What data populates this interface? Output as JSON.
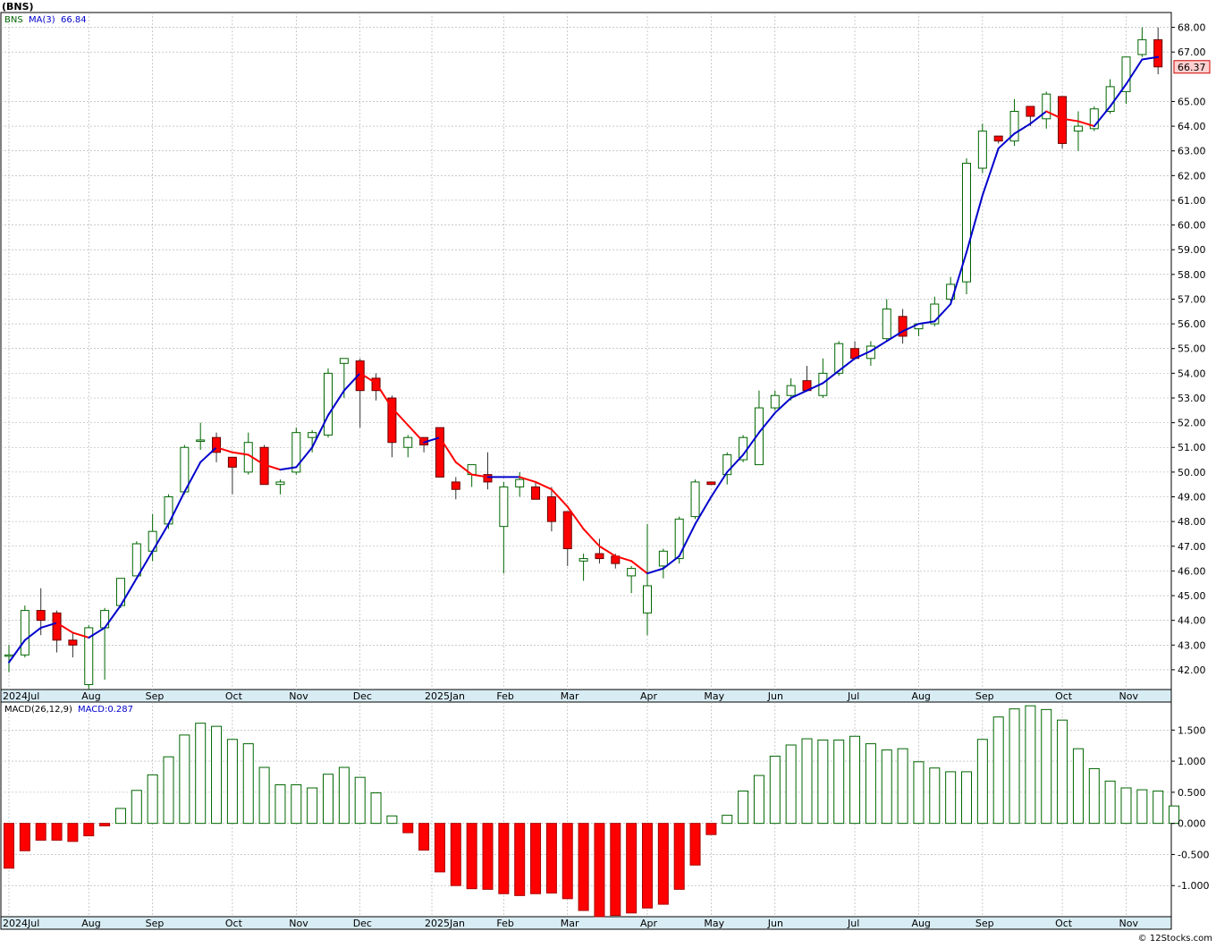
{
  "chart_data": [
    {
      "type": "candlestick",
      "title": "(BNS)",
      "symbol": "BNS",
      "indicator_label": "MA(3)",
      "indicator_value": "66.84",
      "last_price_label": "66.37",
      "ylim": [
        41.2,
        68.6
      ],
      "y_ticks": [
        {
          "value": 42,
          "label": "42.00"
        },
        {
          "value": 43,
          "label": "43.00"
        },
        {
          "value": 44,
          "label": "44.00"
        },
        {
          "value": 45,
          "label": "45.00"
        },
        {
          "value": 46,
          "label": "46.00"
        },
        {
          "value": 47,
          "label": "47.00"
        },
        {
          "value": 48,
          "label": "48.00"
        },
        {
          "value": 49,
          "label": "49.00"
        },
        {
          "value": 50,
          "label": "50.00"
        },
        {
          "value": 51,
          "label": "51.00"
        },
        {
          "value": 52,
          "label": "52.00"
        },
        {
          "value": 53,
          "label": "53.00"
        },
        {
          "value": 54,
          "label": "54.00"
        },
        {
          "value": 55,
          "label": "55.00"
        },
        {
          "value": 56,
          "label": "56.00"
        },
        {
          "value": 57,
          "label": "57.00"
        },
        {
          "value": 58,
          "label": "58.00"
        },
        {
          "value": 59,
          "label": "59.00"
        },
        {
          "value": 60,
          "label": "60.00"
        },
        {
          "value": 61,
          "label": "61.00"
        },
        {
          "value": 62,
          "label": "62.00"
        },
        {
          "value": 63,
          "label": "63.00"
        },
        {
          "value": 64,
          "label": "64.00"
        },
        {
          "value": 65,
          "label": "65.00"
        },
        {
          "value": 67,
          "label": "67.00"
        },
        {
          "value": 68,
          "label": "68.00"
        }
      ],
      "x_ticks": [
        {
          "week": 0,
          "label": "2024Jul"
        },
        {
          "week": 5,
          "label": "Aug"
        },
        {
          "week": 9,
          "label": "Sep"
        },
        {
          "week": 14,
          "label": "Oct"
        },
        {
          "week": 18,
          "label": "Nov"
        },
        {
          "week": 22,
          "label": "Dec"
        },
        {
          "week": 26.5,
          "label": "2025Jan"
        },
        {
          "week": 31,
          "label": "Feb"
        },
        {
          "week": 35,
          "label": "Mar"
        },
        {
          "week": 40,
          "label": "Apr"
        },
        {
          "week": 44,
          "label": "May"
        },
        {
          "week": 48,
          "label": "Jun"
        },
        {
          "week": 53,
          "label": "Jul"
        },
        {
          "week": 57,
          "label": "Aug"
        },
        {
          "week": 61,
          "label": "Sep"
        },
        {
          "week": 66,
          "label": "Oct"
        },
        {
          "week": 70,
          "label": "Nov"
        }
      ],
      "candles": [
        {
          "o": 42.6,
          "h": 43.0,
          "l": 41.9,
          "c": 42.6
        },
        {
          "o": 42.6,
          "h": 44.6,
          "l": 42.5,
          "c": 44.4
        },
        {
          "o": 44.4,
          "h": 45.3,
          "l": 43.4,
          "c": 44.0
        },
        {
          "o": 44.3,
          "h": 44.4,
          "l": 42.7,
          "c": 43.2
        },
        {
          "o": 43.2,
          "h": 43.5,
          "l": 42.5,
          "c": 43.0
        },
        {
          "o": 41.4,
          "h": 43.8,
          "l": 41.2,
          "c": 43.7
        },
        {
          "o": 43.7,
          "h": 44.5,
          "l": 41.6,
          "c": 44.4
        },
        {
          "o": 44.6,
          "h": 45.7,
          "l": 44.5,
          "c": 45.7
        },
        {
          "o": 45.8,
          "h": 47.2,
          "l": 45.8,
          "c": 47.1
        },
        {
          "o": 46.8,
          "h": 48.3,
          "l": 46.4,
          "c": 47.6
        },
        {
          "o": 47.9,
          "h": 49.1,
          "l": 47.7,
          "c": 49.0
        },
        {
          "o": 49.2,
          "h": 51.1,
          "l": 49.1,
          "c": 51.0
        },
        {
          "o": 51.3,
          "h": 52.0,
          "l": 50.9,
          "c": 51.3
        },
        {
          "o": 51.4,
          "h": 51.6,
          "l": 50.4,
          "c": 50.8
        },
        {
          "o": 50.6,
          "h": 50.6,
          "l": 49.1,
          "c": 50.2
        },
        {
          "o": 50.0,
          "h": 51.6,
          "l": 49.9,
          "c": 51.2
        },
        {
          "o": 51.0,
          "h": 51.1,
          "l": 49.5,
          "c": 49.5
        },
        {
          "o": 49.5,
          "h": 49.7,
          "l": 49.1,
          "c": 49.6
        },
        {
          "o": 50.0,
          "h": 51.8,
          "l": 49.9,
          "c": 51.6
        },
        {
          "o": 51.4,
          "h": 51.7,
          "l": 50.8,
          "c": 51.6
        },
        {
          "o": 51.5,
          "h": 54.2,
          "l": 51.4,
          "c": 54.0
        },
        {
          "o": 54.4,
          "h": 54.6,
          "l": 53.0,
          "c": 54.6
        },
        {
          "o": 54.5,
          "h": 54.6,
          "l": 51.8,
          "c": 53.3
        },
        {
          "o": 53.8,
          "h": 54.0,
          "l": 52.9,
          "c": 53.3
        },
        {
          "o": 53.0,
          "h": 53.1,
          "l": 50.6,
          "c": 51.2
        },
        {
          "o": 51.0,
          "h": 51.5,
          "l": 50.6,
          "c": 51.4
        },
        {
          "o": 51.4,
          "h": 51.4,
          "l": 50.8,
          "c": 51.1
        },
        {
          "o": 51.8,
          "h": 51.8,
          "l": 49.8,
          "c": 49.8
        },
        {
          "o": 49.6,
          "h": 49.8,
          "l": 48.9,
          "c": 49.3
        },
        {
          "o": 49.9,
          "h": 50.2,
          "l": 49.4,
          "c": 50.3
        },
        {
          "o": 49.9,
          "h": 50.8,
          "l": 49.3,
          "c": 49.6
        },
        {
          "o": 47.8,
          "h": 49.6,
          "l": 45.9,
          "c": 49.4
        },
        {
          "o": 49.4,
          "h": 50.0,
          "l": 49.0,
          "c": 49.7
        },
        {
          "o": 49.4,
          "h": 49.6,
          "l": 48.9,
          "c": 48.9
        },
        {
          "o": 49.0,
          "h": 49.4,
          "l": 47.6,
          "c": 48.0
        },
        {
          "o": 48.4,
          "h": 48.4,
          "l": 46.2,
          "c": 46.9
        },
        {
          "o": 46.4,
          "h": 46.7,
          "l": 45.6,
          "c": 46.5
        },
        {
          "o": 46.7,
          "h": 47.3,
          "l": 46.3,
          "c": 46.5
        },
        {
          "o": 46.6,
          "h": 46.7,
          "l": 46.1,
          "c": 46.3
        },
        {
          "o": 45.8,
          "h": 46.2,
          "l": 45.1,
          "c": 46.1
        },
        {
          "o": 44.3,
          "h": 47.9,
          "l": 43.4,
          "c": 45.4
        },
        {
          "o": 46.2,
          "h": 46.9,
          "l": 45.7,
          "c": 46.8
        },
        {
          "o": 46.5,
          "h": 48.2,
          "l": 46.3,
          "c": 48.1
        },
        {
          "o": 48.2,
          "h": 49.7,
          "l": 48.1,
          "c": 49.6
        },
        {
          "o": 49.6,
          "h": 49.6,
          "l": 49.5,
          "c": 49.5
        },
        {
          "o": 49.9,
          "h": 50.8,
          "l": 49.5,
          "c": 50.7
        },
        {
          "o": 50.5,
          "h": 51.5,
          "l": 50.4,
          "c": 51.4
        },
        {
          "o": 50.3,
          "h": 53.3,
          "l": 50.3,
          "c": 52.6
        },
        {
          "o": 52.6,
          "h": 53.3,
          "l": 52.5,
          "c": 53.1
        },
        {
          "o": 53.1,
          "h": 53.8,
          "l": 52.9,
          "c": 53.5
        },
        {
          "o": 53.7,
          "h": 54.3,
          "l": 53.4,
          "c": 53.3
        },
        {
          "o": 53.1,
          "h": 54.6,
          "l": 53.0,
          "c": 54.0
        },
        {
          "o": 54.0,
          "h": 55.3,
          "l": 53.9,
          "c": 55.2
        },
        {
          "o": 55.0,
          "h": 55.3,
          "l": 54.6,
          "c": 54.6
        },
        {
          "o": 54.6,
          "h": 55.3,
          "l": 54.3,
          "c": 55.1
        },
        {
          "o": 55.4,
          "h": 57.0,
          "l": 55.3,
          "c": 56.6
        },
        {
          "o": 56.3,
          "h": 56.6,
          "l": 55.2,
          "c": 55.5
        },
        {
          "o": 55.8,
          "h": 56.0,
          "l": 55.5,
          "c": 56.0
        },
        {
          "o": 56.0,
          "h": 57.1,
          "l": 55.9,
          "c": 56.8
        },
        {
          "o": 57.0,
          "h": 57.9,
          "l": 56.9,
          "c": 57.6
        },
        {
          "o": 57.7,
          "h": 62.7,
          "l": 57.2,
          "c": 62.5
        },
        {
          "o": 62.3,
          "h": 64.1,
          "l": 62.1,
          "c": 63.8
        },
        {
          "o": 63.6,
          "h": 63.6,
          "l": 63.3,
          "c": 63.4
        },
        {
          "o": 63.4,
          "h": 65.1,
          "l": 63.2,
          "c": 64.6
        },
        {
          "o": 64.8,
          "h": 64.8,
          "l": 64.0,
          "c": 64.4
        },
        {
          "o": 64.3,
          "h": 65.4,
          "l": 63.9,
          "c": 65.3
        },
        {
          "o": 65.2,
          "h": 65.2,
          "l": 63.1,
          "c": 63.3
        },
        {
          "o": 63.8,
          "h": 64.6,
          "l": 63.0,
          "c": 64.0
        },
        {
          "o": 63.9,
          "h": 64.8,
          "l": 63.8,
          "c": 64.7
        },
        {
          "o": 64.6,
          "h": 65.9,
          "l": 64.5,
          "c": 65.6
        },
        {
          "o": 65.4,
          "h": 66.8,
          "l": 64.9,
          "c": 66.8
        },
        {
          "o": 66.9,
          "h": 68.0,
          "l": 66.8,
          "c": 67.5
        },
        {
          "o": 67.5,
          "h": 68.0,
          "l": 66.1,
          "c": 66.4
        }
      ],
      "ma": [
        42.3,
        43.2,
        43.7,
        43.9,
        43.5,
        43.3,
        43.7,
        44.6,
        45.7,
        46.8,
        47.9,
        49.2,
        50.4,
        51.0,
        50.8,
        50.7,
        50.3,
        50.1,
        50.2,
        51.0,
        52.3,
        53.3,
        54.0,
        53.6,
        52.6,
        51.9,
        51.2,
        51.4,
        50.4,
        49.9,
        49.8,
        49.8,
        49.8,
        49.6,
        49.3,
        48.6,
        47.7,
        47.0,
        46.6,
        46.4,
        45.9,
        46.1,
        46.6,
        47.9,
        49.0,
        50.0,
        50.7,
        51.6,
        52.4,
        53.0,
        53.3,
        53.6,
        54.1,
        54.6,
        54.9,
        55.3,
        55.7,
        56.0,
        56.1,
        56.8,
        58.9,
        61.2,
        63.1,
        63.7,
        64.1,
        64.6,
        64.3,
        64.2,
        64.0,
        64.8,
        65.7,
        66.7,
        66.8
      ],
      "ma_color_changes": {
        "up": "#0000cc",
        "down": "#ff0000"
      },
      "colors": {
        "up_fill": "#ffffff",
        "up_stroke": "#006600",
        "down_fill": "#ff0000",
        "down_stroke": "#660000",
        "grid": "#aaaaaa"
      }
    },
    {
      "type": "bar",
      "title": "MACD(26,12,9)",
      "indicator_label": "MACD:0.287",
      "ylim": [
        -1.5,
        1.95
      ],
      "y_ticks": [
        {
          "value": 1.5,
          "label": "1.500"
        },
        {
          "value": 1.0,
          "label": "1.000"
        },
        {
          "value": 0.5,
          "label": "0.500"
        },
        {
          "value": 0.0,
          "label": "0.000"
        },
        {
          "value": -0.5,
          "label": "-0.500"
        },
        {
          "value": -1.0,
          "label": "-1.000"
        }
      ],
      "values": [
        -0.72,
        -0.44,
        -0.27,
        -0.27,
        -0.29,
        -0.2,
        -0.04,
        0.24,
        0.53,
        0.78,
        1.07,
        1.42,
        1.61,
        1.56,
        1.35,
        1.28,
        0.9,
        0.62,
        0.62,
        0.57,
        0.79,
        0.9,
        0.74,
        0.49,
        0.12,
        -0.15,
        -0.43,
        -0.78,
        -1.0,
        -1.05,
        -1.06,
        -1.13,
        -1.16,
        -1.13,
        -1.12,
        -1.21,
        -1.4,
        -1.5,
        -1.48,
        -1.44,
        -1.36,
        -1.3,
        -1.06,
        -0.67,
        -0.18,
        0.13,
        0.52,
        0.77,
        1.08,
        1.26,
        1.36,
        1.34,
        1.34,
        1.4,
        1.28,
        1.18,
        1.2,
        0.99,
        0.89,
        0.83,
        0.83,
        1.35,
        1.71,
        1.84,
        1.89,
        1.83,
        1.66,
        1.2,
        0.88,
        0.68,
        0.57,
        0.54,
        0.52,
        0.28
      ],
      "colors": {
        "pos_fill": "#ffffff",
        "pos_stroke": "#006600",
        "neg_fill": "#ff0000",
        "neg_stroke": "#aa0000"
      }
    }
  ],
  "footer": {
    "copyright": "© 12Stocks.com"
  }
}
